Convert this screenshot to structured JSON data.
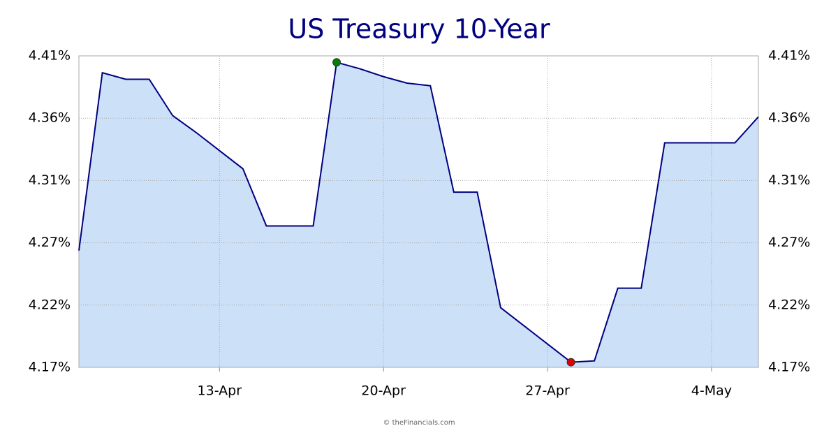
{
  "chart_data": {
    "type": "area",
    "title": "US Treasury 10-Year",
    "categories": [
      null,
      null,
      null,
      null,
      null,
      null,
      "13-Apr",
      null,
      null,
      null,
      null,
      null,
      null,
      "20-Apr",
      null,
      null,
      null,
      null,
      null,
      null,
      "27-Apr",
      null,
      null,
      null,
      null,
      null,
      null,
      "4-May",
      null,
      null
    ],
    "series": [
      {
        "name": "US Treasury 10-Year",
        "color": "#000080",
        "fill": "#cce0f7",
        "values": [
          4.26,
          4.397,
          4.392,
          4.392,
          4.364,
          4.351,
          4.337,
          4.323,
          4.279,
          4.279,
          4.279,
          4.405,
          4.4,
          4.394,
          4.389,
          4.387,
          4.305,
          4.305,
          4.216,
          4.202,
          4.188,
          4.174,
          4.175,
          4.231,
          4.231,
          4.343,
          4.343,
          4.343,
          4.343,
          4.363
        ]
      }
    ],
    "ylim": [
      4.17,
      4.41
    ],
    "yticks": [
      {
        "value": 4.17,
        "label": "4.17%"
      },
      {
        "value": 4.218,
        "label": "4.22%"
      },
      {
        "value": 4.266,
        "label": "4.27%"
      },
      {
        "value": 4.314,
        "label": "4.31%"
      },
      {
        "value": 4.362,
        "label": "4.36%"
      },
      {
        "value": 4.41,
        "label": "4.41%"
      }
    ],
    "grid": true,
    "max_marker_color": "#008000",
    "min_marker_color": "#e00000",
    "source": "© theFinancials.com"
  }
}
